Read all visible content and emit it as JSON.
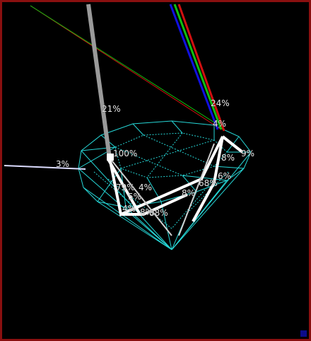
{
  "viewer": {
    "border_color": "#8a1010",
    "background": "#000000",
    "gem_wire_color": "#26d6d6",
    "ray_white": "#ffffff",
    "ray_grey": "#9a9a9a",
    "ray_red": "#d01010",
    "ray_green": "#10c010",
    "ray_blue": "#1010e0",
    "corner_marker_color": "#0b0b8a"
  },
  "labels": [
    {
      "id": "label-21",
      "text": "21%"
    },
    {
      "id": "label-24",
      "text": "24%"
    },
    {
      "id": "label-4-top",
      "text": "4%"
    },
    {
      "id": "label-100",
      "text": "100%"
    },
    {
      "id": "label-3",
      "text": "3%"
    },
    {
      "id": "label-9",
      "text": "9%"
    },
    {
      "id": "label-8-a",
      "text": "8%"
    },
    {
      "id": "label-6",
      "text": "6%"
    },
    {
      "id": "label-79",
      "text": "79%"
    },
    {
      "id": "label-4-mid",
      "text": "4%"
    },
    {
      "id": "label-5",
      "text": "5%"
    },
    {
      "id": "label-8-b",
      "text": "8%"
    },
    {
      "id": "label-68",
      "text": "68%"
    },
    {
      "id": "label-4-low",
      "text": "4%"
    },
    {
      "id": "label-8-c",
      "text": "8%"
    },
    {
      "id": "label-88",
      "text": "88%"
    }
  ]
}
